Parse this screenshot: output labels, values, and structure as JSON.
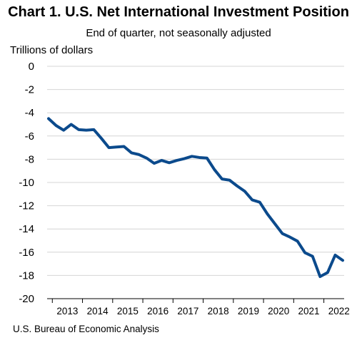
{
  "chart_data": {
    "type": "line",
    "title": "Chart 1. U.S. Net International Investment Position",
    "subtitle": "End of quarter, not seasonally adjusted",
    "ylabel": "Trillions of dollars",
    "xlabel": "",
    "ylim": [
      -20,
      0
    ],
    "yticks": [
      0,
      -2,
      -4,
      -6,
      -8,
      -10,
      -12,
      -14,
      -16,
      -18,
      -20
    ],
    "ytick_labels": [
      "0",
      "-2",
      "-4",
      "-6",
      "-8",
      "-10",
      "-12",
      "-14",
      "-16",
      "-18",
      "-20"
    ],
    "xtick_labels": [
      "2013",
      "2014",
      "2015",
      "2016",
      "2017",
      "2018",
      "2019",
      "2020",
      "2021",
      "2022"
    ],
    "grid": true,
    "line_color": "#0b4a8c",
    "x": [
      "2012 Q4",
      "2013 Q1",
      "2013 Q2",
      "2013 Q3",
      "2013 Q4",
      "2014 Q1",
      "2014 Q2",
      "2014 Q3",
      "2014 Q4",
      "2015 Q1",
      "2015 Q2",
      "2015 Q3",
      "2015 Q4",
      "2016 Q1",
      "2016 Q2",
      "2016 Q3",
      "2016 Q4",
      "2017 Q1",
      "2017 Q2",
      "2017 Q3",
      "2017 Q4",
      "2018 Q1",
      "2018 Q2",
      "2018 Q3",
      "2018 Q4",
      "2019 Q1",
      "2019 Q2",
      "2019 Q3",
      "2019 Q4",
      "2020 Q1",
      "2020 Q2",
      "2020 Q3",
      "2020 Q4",
      "2021 Q1",
      "2021 Q2",
      "2021 Q3",
      "2021 Q4",
      "2022 Q1",
      "2022 Q2",
      "2022 Q3"
    ],
    "series": [
      {
        "values": [
          -4.5,
          -5.1,
          -5.5,
          -5.0,
          -5.45,
          -5.5,
          -5.45,
          -6.2,
          -7.0,
          -6.95,
          -6.9,
          -7.45,
          -7.6,
          -7.9,
          -8.35,
          -8.1,
          -8.3,
          -8.1,
          -7.95,
          -7.75,
          -7.85,
          -7.9,
          -8.9,
          -9.7,
          -9.8,
          -10.3,
          -10.75,
          -11.5,
          -11.7,
          -12.7,
          -13.55,
          -14.4,
          -14.7,
          -15.05,
          -16.05,
          -16.35,
          -18.1,
          -17.75,
          -16.25,
          -16.7
        ]
      }
    ]
  },
  "footer": {
    "source": "U.S. Bureau of Economic Analysis"
  }
}
